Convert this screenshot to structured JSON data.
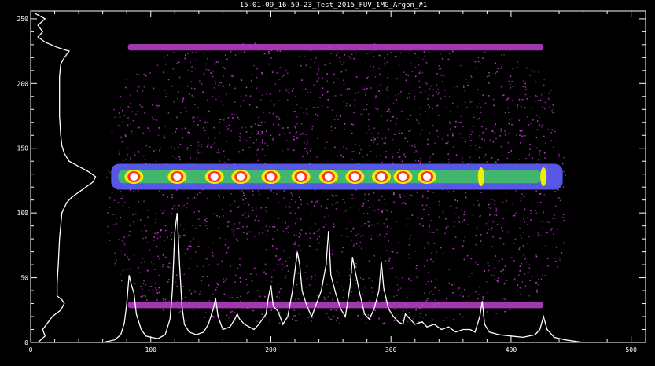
{
  "chart_data": {
    "type": "heatmap",
    "title": "15-01-09_16-59-23_Test_2015_FUV_IMG_Argon_#1",
    "xlim": [
      0,
      512
    ],
    "ylim": [
      0,
      256
    ],
    "x_ticks": [
      "0",
      "100",
      "200",
      "300",
      "400",
      "500"
    ],
    "y_ticks": [
      "0",
      "50",
      "100",
      "150",
      "200",
      "250"
    ],
    "background": "#000000",
    "frame_color": "#ffffff",
    "colors": {
      "scatter": "#c040d0",
      "band_low": "#6060ff",
      "band_mid": "#40c060",
      "band_high": "#f0f000",
      "band_peak": "#ff3030",
      "band_core": "#ffffff",
      "profile": "#ffffff"
    },
    "image_extent": {
      "x": [
        63,
        445
      ],
      "y": [
        15,
        232
      ]
    },
    "spectral_band": {
      "center_y": 128,
      "half_width_y": 10
    },
    "purple_stripes_y": [
      29,
      228
    ],
    "bright_spots_x": [
      86,
      122,
      153,
      175,
      200,
      225,
      248,
      270,
      292,
      310,
      330,
      375,
      427
    ],
    "x_profile": {
      "x": [
        60,
        70,
        75,
        78,
        80,
        82,
        84,
        86,
        88,
        92,
        96,
        100,
        106,
        112,
        116,
        118,
        120,
        122,
        124,
        126,
        128,
        132,
        138,
        144,
        148,
        152,
        154,
        156,
        160,
        166,
        170,
        172,
        174,
        178,
        182,
        186,
        190,
        196,
        198,
        200,
        202,
        206,
        210,
        214,
        218,
        222,
        224,
        226,
        230,
        234,
        238,
        242,
        246,
        248,
        250,
        254,
        258,
        262,
        266,
        268,
        270,
        274,
        278,
        282,
        286,
        290,
        292,
        294,
        298,
        302,
        306,
        310,
        312,
        316,
        320,
        326,
        330,
        336,
        342,
        348,
        354,
        360,
        366,
        370,
        374,
        376,
        378,
        382,
        390,
        400,
        410,
        420,
        424,
        427,
        430,
        436,
        445,
        460
      ],
      "y": [
        0,
        2,
        6,
        15,
        30,
        52,
        44,
        38,
        22,
        10,
        5,
        4,
        3,
        6,
        18,
        40,
        85,
        100,
        60,
        28,
        14,
        8,
        6,
        8,
        14,
        26,
        34,
        20,
        10,
        12,
        18,
        22,
        18,
        14,
        12,
        10,
        14,
        22,
        35,
        44,
        28,
        24,
        14,
        20,
        40,
        70,
        60,
        40,
        28,
        20,
        30,
        40,
        60,
        86,
        52,
        38,
        26,
        20,
        44,
        66,
        56,
        38,
        22,
        18,
        26,
        40,
        62,
        42,
        26,
        20,
        16,
        14,
        22,
        18,
        14,
        16,
        12,
        14,
        10,
        12,
        8,
        10,
        10,
        8,
        20,
        32,
        14,
        8,
        6,
        5,
        4,
        6,
        10,
        20,
        10,
        4,
        2,
        0
      ]
    },
    "y_profile": {
      "y": [
        0,
        5,
        10,
        15,
        20,
        25,
        30,
        33,
        36,
        45,
        60,
        80,
        100,
        108,
        112,
        116,
        120,
        124,
        128,
        132,
        136,
        140,
        146,
        152,
        160,
        175,
        190,
        205,
        215,
        220,
        225,
        228,
        232,
        236,
        240,
        245,
        250,
        254
      ],
      "x": [
        6,
        12,
        10,
        14,
        18,
        25,
        28,
        26,
        22,
        22,
        23,
        24,
        26,
        30,
        34,
        40,
        46,
        52,
        54,
        48,
        40,
        32,
        28,
        26,
        25,
        24,
        24,
        24,
        25,
        28,
        32,
        22,
        12,
        6,
        10,
        6,
        12,
        4
      ]
    }
  }
}
